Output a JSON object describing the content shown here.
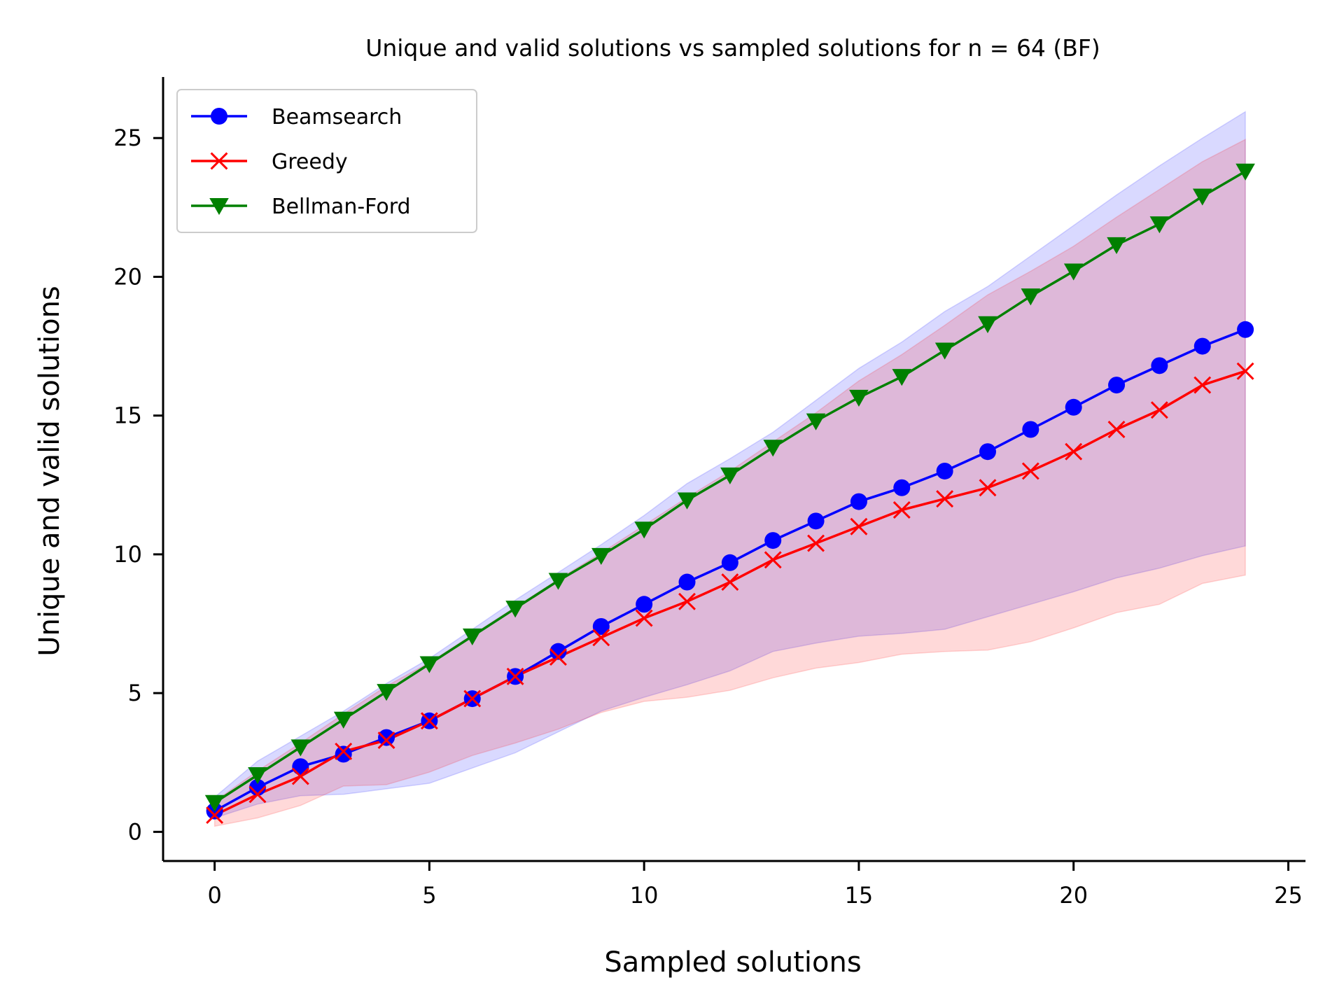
{
  "chart_data": {
    "type": "line",
    "title": "Unique and valid solutions vs sampled solutions for n = 64 (BF)",
    "xlabel": "Sampled solutions",
    "ylabel": "Unique and valid solutions",
    "xlim": [
      -1.2,
      25.4
    ],
    "ylim": [
      -1.05,
      27.2
    ],
    "xticks": [
      0,
      5,
      10,
      15,
      20,
      25
    ],
    "yticks": [
      0,
      5,
      10,
      15,
      20,
      25
    ],
    "grid": false,
    "legend_position": "top-left",
    "x": [
      0,
      1,
      2,
      3,
      4,
      5,
      6,
      7,
      8,
      9,
      10,
      11,
      12,
      13,
      14,
      15,
      16,
      17,
      18,
      19,
      20,
      21,
      22,
      23,
      24
    ],
    "series": [
      {
        "name": "Beamsearch",
        "color": "#0000ff",
        "marker": "circle",
        "values": [
          0.75,
          1.6,
          2.35,
          2.8,
          3.4,
          4.0,
          4.8,
          5.6,
          6.5,
          7.4,
          8.2,
          9.0,
          9.7,
          10.5,
          11.2,
          11.9,
          12.4,
          13.0,
          13.7,
          14.5,
          15.3,
          16.1,
          16.8,
          17.5,
          18.1
        ],
        "band_lower": [
          0.5,
          1.0,
          1.3,
          1.35,
          1.55,
          1.75,
          2.3,
          2.85,
          3.6,
          4.35,
          4.85,
          5.3,
          5.8,
          6.5,
          6.8,
          7.05,
          7.15,
          7.3,
          7.75,
          8.2,
          8.65,
          9.15,
          9.5,
          9.95,
          10.3
        ],
        "band_upper": [
          1.25,
          2.55,
          3.45,
          4.35,
          5.35,
          6.25,
          7.3,
          8.35,
          9.35,
          10.35,
          11.4,
          12.55,
          13.45,
          14.4,
          15.55,
          16.7,
          17.65,
          18.75,
          19.65,
          20.75,
          21.85,
          22.95,
          24.0,
          25.0,
          25.95
        ]
      },
      {
        "name": "Greedy",
        "color": "#ff0000",
        "marker": "x",
        "values": [
          0.6,
          1.35,
          2.0,
          2.9,
          3.3,
          4.0,
          4.8,
          5.6,
          6.3,
          7.0,
          7.7,
          8.3,
          9.0,
          9.8,
          10.4,
          11.0,
          11.6,
          12.0,
          12.4,
          13.0,
          13.7,
          14.5,
          15.2,
          16.1,
          16.6
        ],
        "band_lower": [
          0.2,
          0.5,
          0.95,
          1.65,
          1.7,
          2.15,
          2.75,
          3.2,
          3.7,
          4.3,
          4.7,
          4.85,
          5.1,
          5.55,
          5.9,
          6.1,
          6.4,
          6.5,
          6.55,
          6.85,
          7.35,
          7.9,
          8.2,
          8.95,
          9.25
        ],
        "band_upper": [
          1.1,
          2.2,
          3.2,
          4.25,
          5.25,
          6.1,
          7.1,
          8.1,
          9.1,
          10.05,
          11.05,
          12.05,
          13.0,
          14.05,
          15.1,
          16.25,
          17.2,
          18.25,
          19.35,
          20.2,
          21.1,
          22.15,
          23.15,
          24.15,
          24.95
        ]
      },
      {
        "name": "Bellman-Ford",
        "color": "#008000",
        "marker": "triangle-down",
        "values": [
          1.05,
          2.05,
          3.05,
          4.05,
          5.05,
          6.05,
          7.05,
          8.05,
          9.05,
          9.95,
          10.9,
          11.95,
          12.85,
          13.85,
          14.8,
          15.65,
          16.4,
          17.35,
          18.3,
          19.3,
          20.2,
          21.15,
          21.9,
          22.9,
          23.8
        ]
      }
    ]
  }
}
